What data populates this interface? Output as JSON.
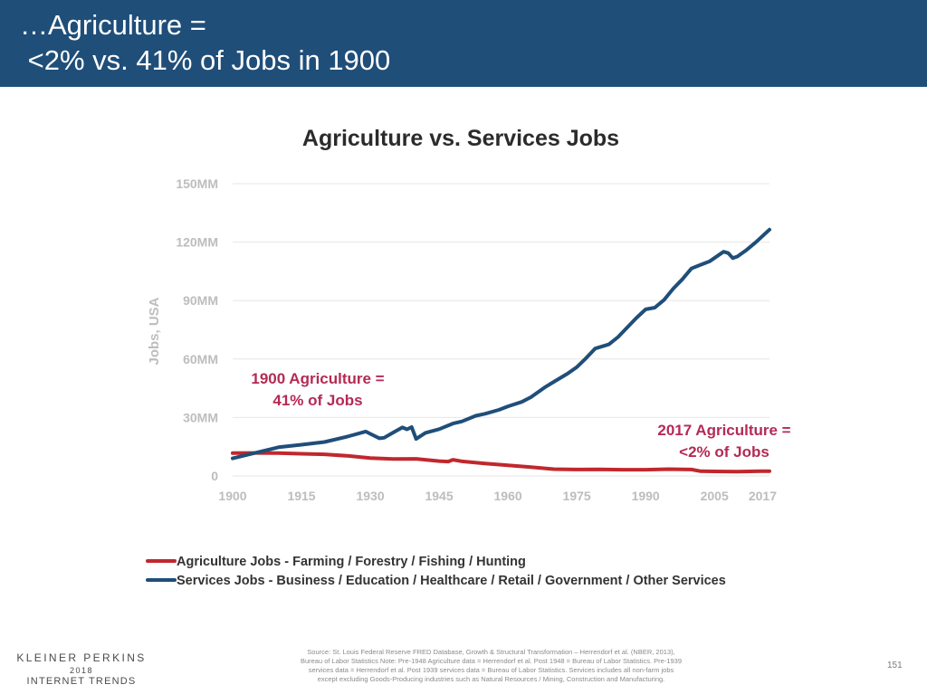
{
  "header": {
    "title_line1": "…Agriculture =",
    "title_line2": " <2% vs. 41% of Jobs in 1900"
  },
  "colors": {
    "header_bg": "#1f4e79",
    "agriculture": "#c0282d",
    "services": "#1f4e79",
    "annotation": "#b52a55",
    "axis_text": "#bdbdbd",
    "grid": "#e6e6e6"
  },
  "chart_data": {
    "type": "line",
    "title": "Agriculture vs. Services Jobs",
    "ylabel": "Jobs, USA",
    "xlabel": "",
    "xlim": [
      1900,
      2017
    ],
    "ylim": [
      0,
      150
    ],
    "y_ticks": [
      0,
      30,
      60,
      90,
      120,
      150
    ],
    "y_tick_labels": [
      "0",
      "30MM",
      "60MM",
      "90MM",
      "120MM",
      "150MM"
    ],
    "x_ticks": [
      1900,
      1915,
      1930,
      1945,
      1960,
      1975,
      1990,
      2005,
      2017
    ],
    "x_tick_labels": [
      "1900",
      "1915",
      "1930",
      "1945",
      "1960",
      "1975",
      "1990",
      "2005",
      "2017"
    ],
    "grid": true,
    "legend_position": "bottom-left",
    "series": [
      {
        "name": "Agriculture Jobs - Farming / Forestry / Fishing / Hunting",
        "color": "#c0282d",
        "points": [
          [
            1900,
            11.7
          ],
          [
            1905,
            11.8
          ],
          [
            1910,
            11.7
          ],
          [
            1915,
            11.4
          ],
          [
            1920,
            11.1
          ],
          [
            1925,
            10.3
          ],
          [
            1930,
            9.2
          ],
          [
            1935,
            8.7
          ],
          [
            1940,
            8.8
          ],
          [
            1945,
            7.6
          ],
          [
            1947,
            7.4
          ],
          [
            1948,
            8.3
          ],
          [
            1950,
            7.5
          ],
          [
            1955,
            6.4
          ],
          [
            1960,
            5.5
          ],
          [
            1965,
            4.5
          ],
          [
            1970,
            3.5
          ],
          [
            1975,
            3.3
          ],
          [
            1980,
            3.4
          ],
          [
            1985,
            3.2
          ],
          [
            1990,
            3.2
          ],
          [
            1995,
            3.5
          ],
          [
            2000,
            3.3
          ],
          [
            2002,
            2.4
          ],
          [
            2005,
            2.3
          ],
          [
            2010,
            2.2
          ],
          [
            2015,
            2.4
          ],
          [
            2017,
            2.4
          ]
        ]
      },
      {
        "name": "Services Jobs - Business / Education / Healthcare / Retail / Government / Other Services",
        "color": "#1f4e79",
        "points": [
          [
            1900,
            9
          ],
          [
            1905,
            11.9
          ],
          [
            1910,
            14.7
          ],
          [
            1915,
            16
          ],
          [
            1920,
            17.4
          ],
          [
            1925,
            20.2
          ],
          [
            1929,
            22.8
          ],
          [
            1930,
            21.6
          ],
          [
            1932,
            19.3
          ],
          [
            1933,
            19.6
          ],
          [
            1935,
            22.3
          ],
          [
            1937,
            24.9
          ],
          [
            1938,
            23.9
          ],
          [
            1939,
            25.1
          ],
          [
            1940,
            19
          ],
          [
            1942,
            22.1
          ],
          [
            1945,
            24
          ],
          [
            1948,
            26.9
          ],
          [
            1950,
            28
          ],
          [
            1953,
            30.9
          ],
          [
            1955,
            31.9
          ],
          [
            1958,
            33.9
          ],
          [
            1960,
            35.7
          ],
          [
            1963,
            38
          ],
          [
            1965,
            40.4
          ],
          [
            1968,
            45.4
          ],
          [
            1970,
            48.3
          ],
          [
            1973,
            52.5
          ],
          [
            1975,
            55.8
          ],
          [
            1977,
            60.4
          ],
          [
            1979,
            65.4
          ],
          [
            1982,
            67.5
          ],
          [
            1984,
            71.3
          ],
          [
            1986,
            76.2
          ],
          [
            1988,
            81.1
          ],
          [
            1990,
            85.5
          ],
          [
            1992,
            86.4
          ],
          [
            1994,
            90.3
          ],
          [
            1996,
            96.1
          ],
          [
            1998,
            100.9
          ],
          [
            2000,
            106.5
          ],
          [
            2002,
            108.4
          ],
          [
            2004,
            110.2
          ],
          [
            2007,
            115.1
          ],
          [
            2008,
            114.4
          ],
          [
            2009,
            111.8
          ],
          [
            2010,
            112.6
          ],
          [
            2012,
            116
          ],
          [
            2014,
            119.9
          ],
          [
            2017,
            126.4
          ]
        ]
      }
    ],
    "annotations": [
      {
        "lines": [
          "1900 Agriculture =",
          "41% of Jobs"
        ]
      },
      {
        "lines": [
          "2017 Agriculture =",
          "<2% of Jobs"
        ]
      }
    ]
  },
  "footer": {
    "logo_line1": "KLEINER PERKINS",
    "logo_line2": "2018",
    "logo_line3": "INTERNET TRENDS",
    "source_lines": [
      "Source: St. Louis Federal Reserve FRED Database, Growth & Structural Transformation – Herrendorf et al. (NBER, 2013),",
      "Bureau of Labor Statistics Note: Pre-1948 Agriculture data = Herrendorf et al. Post 1948 = Bureau of Labor Statistics. Pre-1939",
      "services data = Herrendorf et al. Post 1939 services data = Bureau of Labor Statistics.  Services includes all non-farm jobs",
      "except excluding Goods-Producing industries such as Natural Resources / Mining, Construction and Manufacturing."
    ],
    "page_number": "151"
  }
}
